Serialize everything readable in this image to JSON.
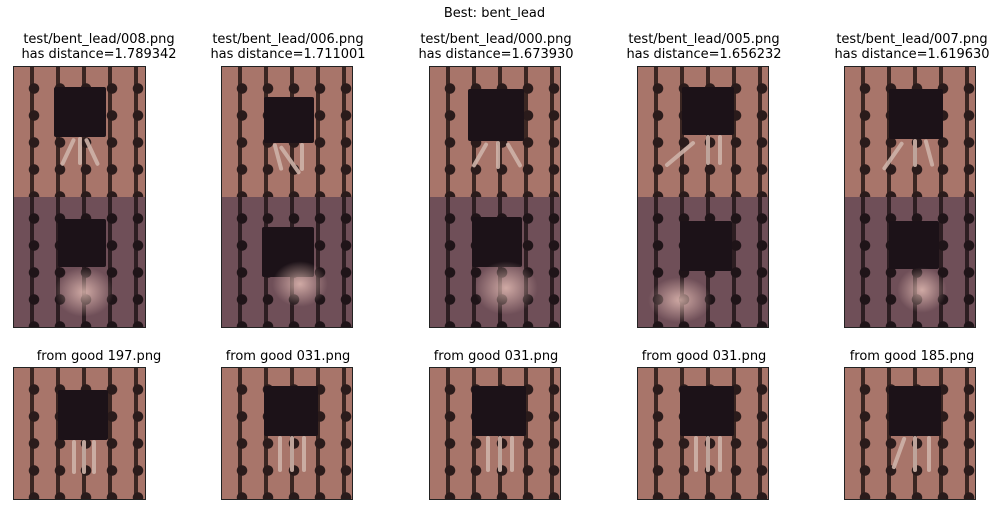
{
  "suptitle": "Best: bent_lead",
  "columns": [
    {
      "path": "test/bent_lead/008.png",
      "distance_text": "has distance=1.789342",
      "good_label": "from good 197.png"
    },
    {
      "path": "test/bent_lead/006.png",
      "distance_text": "has distance=1.711001",
      "good_label": "from good 031.png"
    },
    {
      "path": "test/bent_lead/000.png",
      "distance_text": "has distance=1.673930",
      "good_label": "from good 031.png"
    },
    {
      "path": "test/bent_lead/005.png",
      "distance_text": "has distance=1.656232",
      "good_label": "from good 031.png"
    },
    {
      "path": "test/bent_lead/007.png",
      "distance_text": "has distance=1.619630",
      "good_label": "from good 185.png"
    }
  ]
}
